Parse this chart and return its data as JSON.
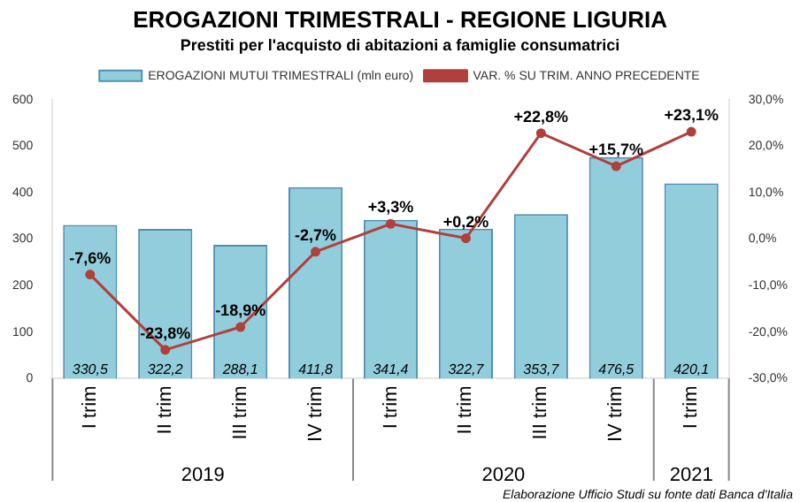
{
  "chart_data": {
    "type": "bar",
    "title": "EROGAZIONI TRIMESTRALI - REGIONE LIGURIA",
    "subtitle": "Prestiti per l'acquisto di abitazioni a famiglie consumatrici",
    "categories": [
      "I trim",
      "II trim",
      "III trim",
      "IV trim",
      "I trim",
      "II trim",
      "III trim",
      "IV trim",
      "I trim"
    ],
    "series": [
      {
        "name": "EROGAZIONI MUTUI TRIMESTRALI (mln euro)",
        "color": "#92cddc",
        "values": [
          330.5,
          322.2,
          288.1,
          411.8,
          341.4,
          322.7,
          353.7,
          476.5,
          420.1
        ],
        "value_labels": [
          "330,5",
          "322,2",
          "288,1",
          "411,8",
          "341,4",
          "322,7",
          "353,7",
          "476,5",
          "420,1"
        ]
      },
      {
        "name": "VAR. % SU TRIM. ANNO PRECEDENTE",
        "type": "line",
        "axis": "y2",
        "color": "#b0403c",
        "marker": "circle",
        "values": [
          -7.6,
          -23.8,
          -18.9,
          -2.7,
          3.3,
          0.2,
          22.8,
          15.7,
          23.1
        ],
        "value_labels": [
          "-7,6%",
          "-23,8%",
          "-18,9%",
          "-2,7%",
          "+3,3%",
          "+0,2%",
          "+22,8%",
          "+15,7%",
          "+23,1%"
        ]
      }
    ],
    "ylim": [
      0,
      600
    ],
    "yticks": [
      0,
      100,
      200,
      300,
      400,
      500,
      600
    ],
    "y2lim": [
      -30,
      30
    ],
    "y2ticks": [
      {
        "value": -30,
        "label": "-30,0%"
      },
      {
        "value": -20,
        "label": "-20,0%"
      },
      {
        "value": -10,
        "label": "-10,0%"
      },
      {
        "value": 0,
        "label": "0,0%"
      },
      {
        "value": 10,
        "label": "10,0%"
      },
      {
        "value": 20,
        "label": "20,0%"
      },
      {
        "value": 30,
        "label": "30,0%"
      }
    ],
    "grid": false,
    "legend": "top",
    "annotations": [
      "2019",
      "2020",
      "2021",
      "Elaborazione Ufficio Studi su fonte dati Banca d'Italia"
    ]
  }
}
